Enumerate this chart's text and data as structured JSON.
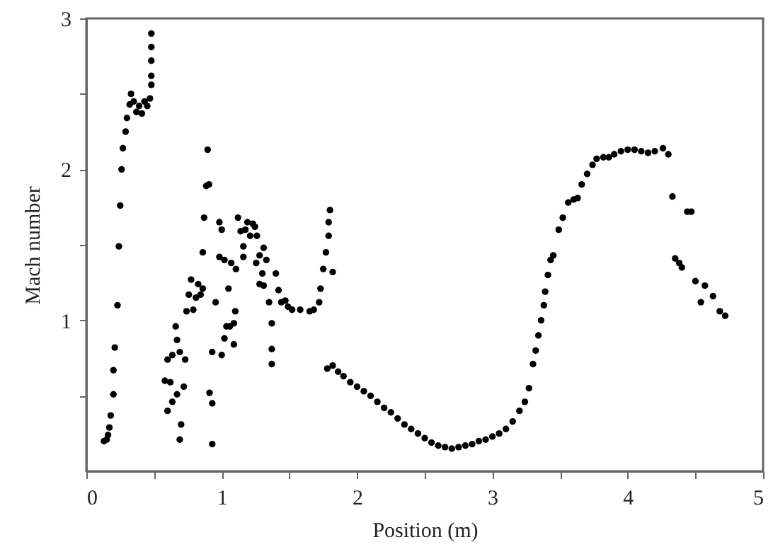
{
  "chart_data": {
    "type": "scatter",
    "xlabel": "Position (m)",
    "ylabel": "Mach number",
    "marker": "circle",
    "grid": false,
    "xlim": [
      0,
      5
    ],
    "ylim": [
      0,
      3
    ],
    "xticks": [
      0,
      {
        "value": 0.5,
        "label": null
      },
      1,
      {
        "value": 1.5,
        "label": null
      },
      2,
      {
        "value": 2.5,
        "label": null
      },
      3,
      {
        "value": 3.5,
        "label": null
      },
      4,
      {
        "value": 4.5,
        "label": null
      },
      5
    ],
    "yticks": [
      {
        "value": 0.5,
        "label": null
      },
      1,
      {
        "value": 1.5,
        "label": null
      },
      2,
      {
        "value": 2.5,
        "label": null
      },
      3
    ],
    "series": [
      {
        "color": "#000000",
        "x": [
          0.13,
          0.15,
          0.16,
          0.17,
          0.18,
          0.2,
          0.2,
          0.21,
          0.23,
          0.24,
          0.25,
          0.26,
          0.27,
          0.29,
          0.3,
          0.32,
          0.33,
          0.35,
          0.37,
          0.39,
          0.41,
          0.43,
          0.45,
          0.47,
          0.48,
          0.48,
          0.48,
          0.48,
          0.48,
          0.58,
          0.62,
          0.6,
          0.635,
          0.67,
          0.69,
          0.7,
          0.72,
          0.6,
          0.635,
          0.67,
          0.66,
          0.69,
          0.73,
          0.74,
          0.757,
          0.774,
          0.79,
          0.81,
          0.826,
          0.86,
          0.844,
          0.896,
          0.886,
          0.906,
          0.87,
          0.86,
          0.91,
          0.93,
          0.93,
          0.93,
          0.955,
          0.983,
          1.0,
          0.983,
          1.02,
          1.0,
          1.02,
          1.035,
          1.05,
          1.06,
          1.09,
          1.09,
          1.1,
          1.07,
          1.105,
          1.12,
          1.14,
          1.16,
          1.16,
          1.175,
          1.19,
          1.21,
          1.23,
          1.245,
          1.255,
          1.26,
          1.28,
          1.3,
          1.31,
          1.33,
          1.28,
          1.31,
          1.35,
          1.37,
          1.37,
          1.37,
          1.4,
          1.42,
          1.44,
          1.47,
          1.49,
          1.52,
          1.58,
          1.65,
          1.68,
          1.72,
          1.73,
          1.75,
          1.77,
          1.79,
          1.79,
          1.8,
          1.82,
          1.78,
          1.82,
          1.86,
          1.9,
          1.95,
          2.0,
          2.05,
          2.1,
          2.15,
          2.2,
          2.25,
          2.3,
          2.35,
          2.4,
          2.45,
          2.5,
          2.55,
          2.6,
          2.65,
          2.7,
          2.75,
          2.8,
          2.85,
          2.9,
          2.95,
          3.0,
          3.05,
          3.1,
          3.15,
          3.2,
          3.24,
          3.27,
          3.3,
          3.32,
          3.34,
          3.36,
          3.38,
          3.39,
          3.41,
          3.43,
          3.45,
          3.49,
          3.52,
          3.56,
          3.6,
          3.63,
          3.66,
          3.7,
          3.74,
          3.77,
          3.82,
          3.86,
          3.9,
          3.95,
          4.0,
          4.05,
          4.1,
          4.15,
          4.2,
          4.26,
          4.3,
          4.33,
          4.35,
          4.38,
          4.4,
          4.44,
          4.47,
          4.5,
          4.54,
          4.57,
          4.63,
          4.68,
          4.72
        ],
        "values": [
          0.2,
          0.21,
          0.24,
          0.29,
          0.37,
          0.51,
          0.67,
          0.82,
          1.1,
          1.49,
          1.76,
          2.0,
          2.14,
          2.25,
          2.34,
          2.43,
          2.5,
          2.45,
          2.38,
          2.42,
          2.37,
          2.45,
          2.42,
          2.47,
          2.56,
          2.62,
          2.72,
          2.81,
          2.9,
          0.6,
          0.59,
          0.4,
          0.46,
          0.51,
          0.21,
          0.31,
          0.56,
          0.74,
          0.77,
          0.87,
          0.96,
          0.79,
          0.74,
          1.06,
          1.17,
          1.27,
          1.07,
          1.15,
          1.24,
          1.21,
          1.17,
          2.13,
          1.89,
          1.9,
          1.68,
          1.45,
          0.52,
          0.45,
          0.18,
          0.79,
          1.12,
          1.65,
          1.6,
          1.42,
          1.4,
          0.77,
          0.88,
          0.96,
          1.21,
          0.96,
          0.98,
          0.84,
          1.06,
          1.38,
          1.34,
          1.68,
          1.59,
          1.49,
          1.42,
          1.6,
          1.65,
          1.56,
          1.64,
          1.62,
          1.38,
          1.56,
          1.43,
          1.31,
          1.48,
          1.4,
          1.24,
          1.23,
          1.12,
          0.98,
          0.81,
          0.71,
          1.31,
          1.2,
          1.12,
          1.13,
          1.09,
          1.07,
          1.07,
          1.06,
          1.07,
          1.12,
          1.21,
          1.34,
          1.45,
          1.56,
          1.65,
          1.73,
          1.32,
          0.68,
          0.7,
          0.66,
          0.63,
          0.59,
          0.56,
          0.53,
          0.5,
          0.46,
          0.42,
          0.39,
          0.35,
          0.31,
          0.28,
          0.25,
          0.22,
          0.19,
          0.17,
          0.16,
          0.15,
          0.16,
          0.17,
          0.18,
          0.2,
          0.21,
          0.23,
          0.25,
          0.28,
          0.33,
          0.4,
          0.46,
          0.55,
          0.71,
          0.8,
          0.9,
          1.0,
          1.1,
          1.19,
          1.3,
          1.4,
          1.43,
          1.6,
          1.68,
          1.78,
          1.8,
          1.81,
          1.9,
          1.97,
          2.03,
          2.07,
          2.08,
          2.08,
          2.1,
          2.12,
          2.13,
          2.13,
          2.12,
          2.11,
          2.12,
          2.14,
          2.1,
          1.82,
          1.41,
          1.38,
          1.35,
          1.72,
          1.72,
          1.26,
          1.12,
          1.23,
          1.16,
          1.06,
          1.03
        ]
      }
    ]
  }
}
